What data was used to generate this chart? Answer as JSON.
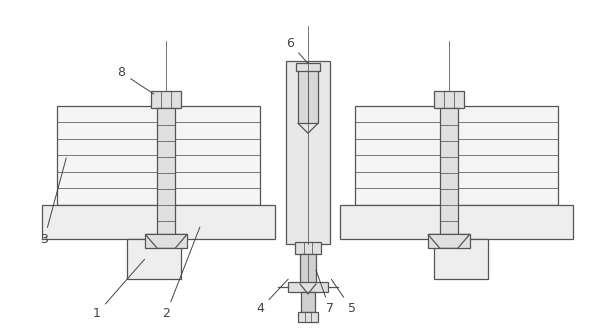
{
  "fig_width": 6.13,
  "fig_height": 3.35,
  "dpi": 100,
  "bg_color": "#ffffff",
  "lc": "#555555",
  "lw": 0.9,
  "lwt": 0.55,
  "label_fontsize": 9,
  "ann_color": "#444444",
  "fc_block": "#f5f5f5",
  "fc_base": "#eeeeee",
  "fc_bolt": "#e0e0e0",
  "fc_center": "#e8e8e8"
}
